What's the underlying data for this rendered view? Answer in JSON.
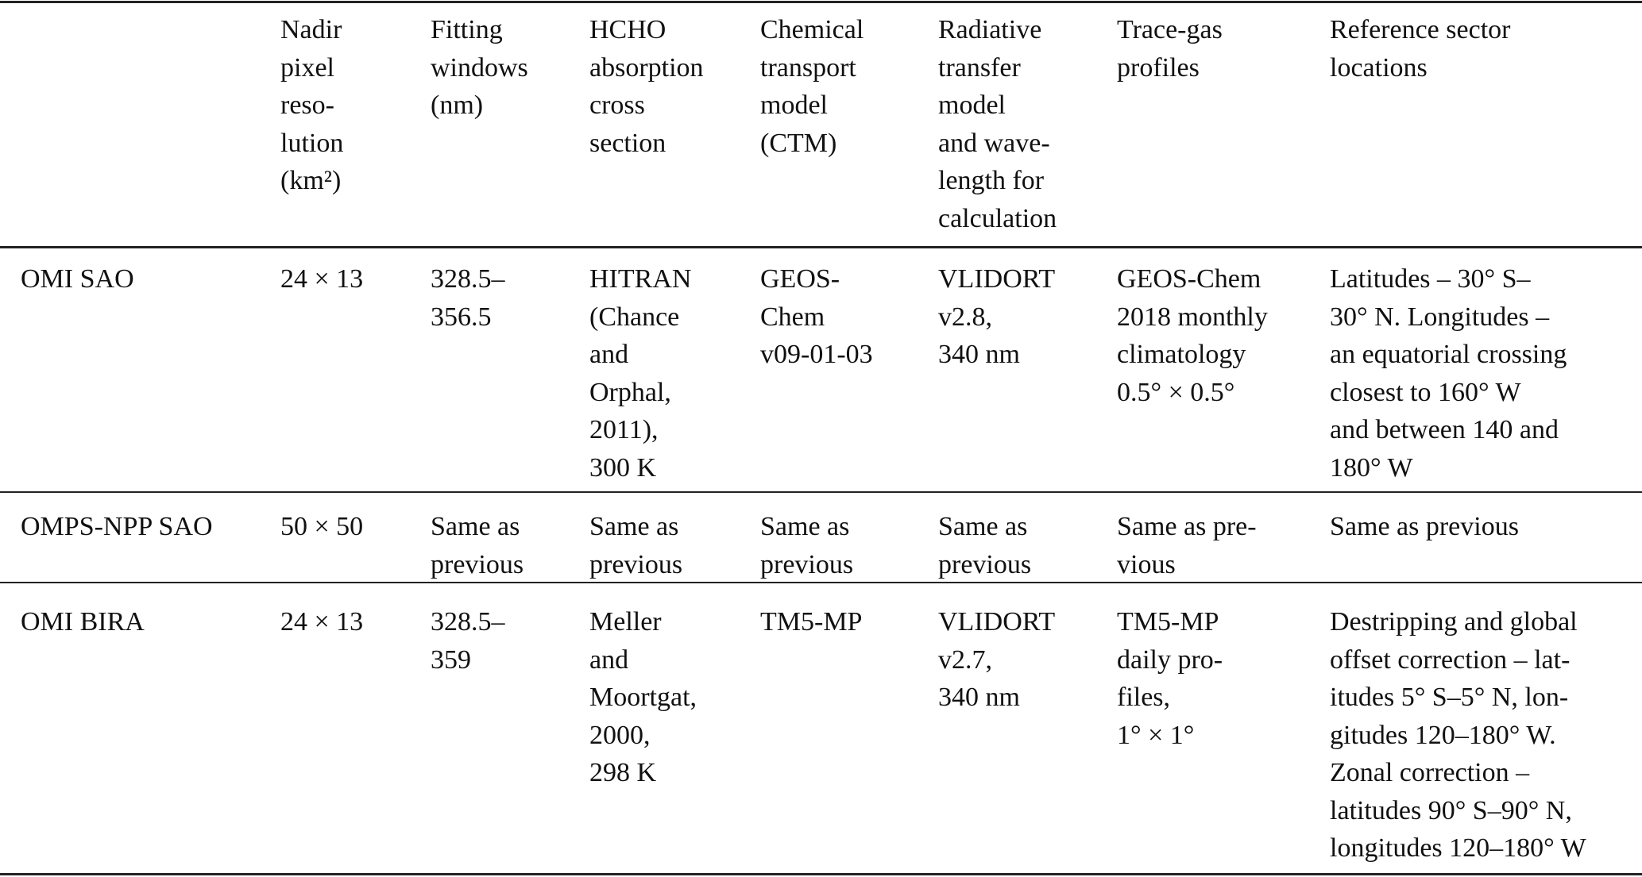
{
  "table": {
    "headers": [
      "",
      "Nadir\npixel\nreso-\nlution\n(km²)",
      "Fitting\nwindows\n(nm)",
      "HCHO\nabsorption\ncross\nsection",
      "Chemical\ntransport\nmodel\n(CTM)",
      "Radiative\ntransfer\nmodel\nand wave-\nlength for\ncalculation",
      "Trace-gas\nprofiles",
      "Reference sector\nlocations"
    ],
    "rows": [
      {
        "cells": [
          "OMI SAO",
          "24 × 13",
          "328.5–\n356.5",
          "HITRAN\n(Chance\nand\nOrphal,\n2011),\n300 K",
          "GEOS-\nChem\nv09-01-03",
          "VLIDORT\nv2.8,\n340 nm",
          "GEOS-Chem\n2018 monthly\nclimatology\n0.5° × 0.5°",
          "Latitudes – 30° S–\n30° N. Longitudes –\nan equatorial crossing\nclosest to 160° W\nand between 140 and\n180° W"
        ]
      },
      {
        "cells": [
          "OMPS-NPP SAO",
          "50 × 50",
          "Same as\nprevious",
          "Same as\nprevious",
          "Same as\nprevious",
          "Same as\nprevious",
          "Same as pre-\nvious",
          "Same as previous"
        ]
      },
      {
        "cells": [
          "OMI BIRA",
          "24 × 13",
          "328.5–\n359",
          "Meller\nand\nMoortgat,\n2000,\n298 K",
          "TM5-MP",
          "VLIDORT\nv2.7,\n340 nm",
          "TM5-MP\ndaily pro-\nfiles,\n1° × 1°",
          "Destripping and global\noffset correction – lat-\nitudes 5° S–5° N, lon-\ngitudes 120–180° W.\nZonal correction –\nlatitudes 90° S–90° N,\nlongitudes 120–180° W"
        ]
      }
    ]
  }
}
